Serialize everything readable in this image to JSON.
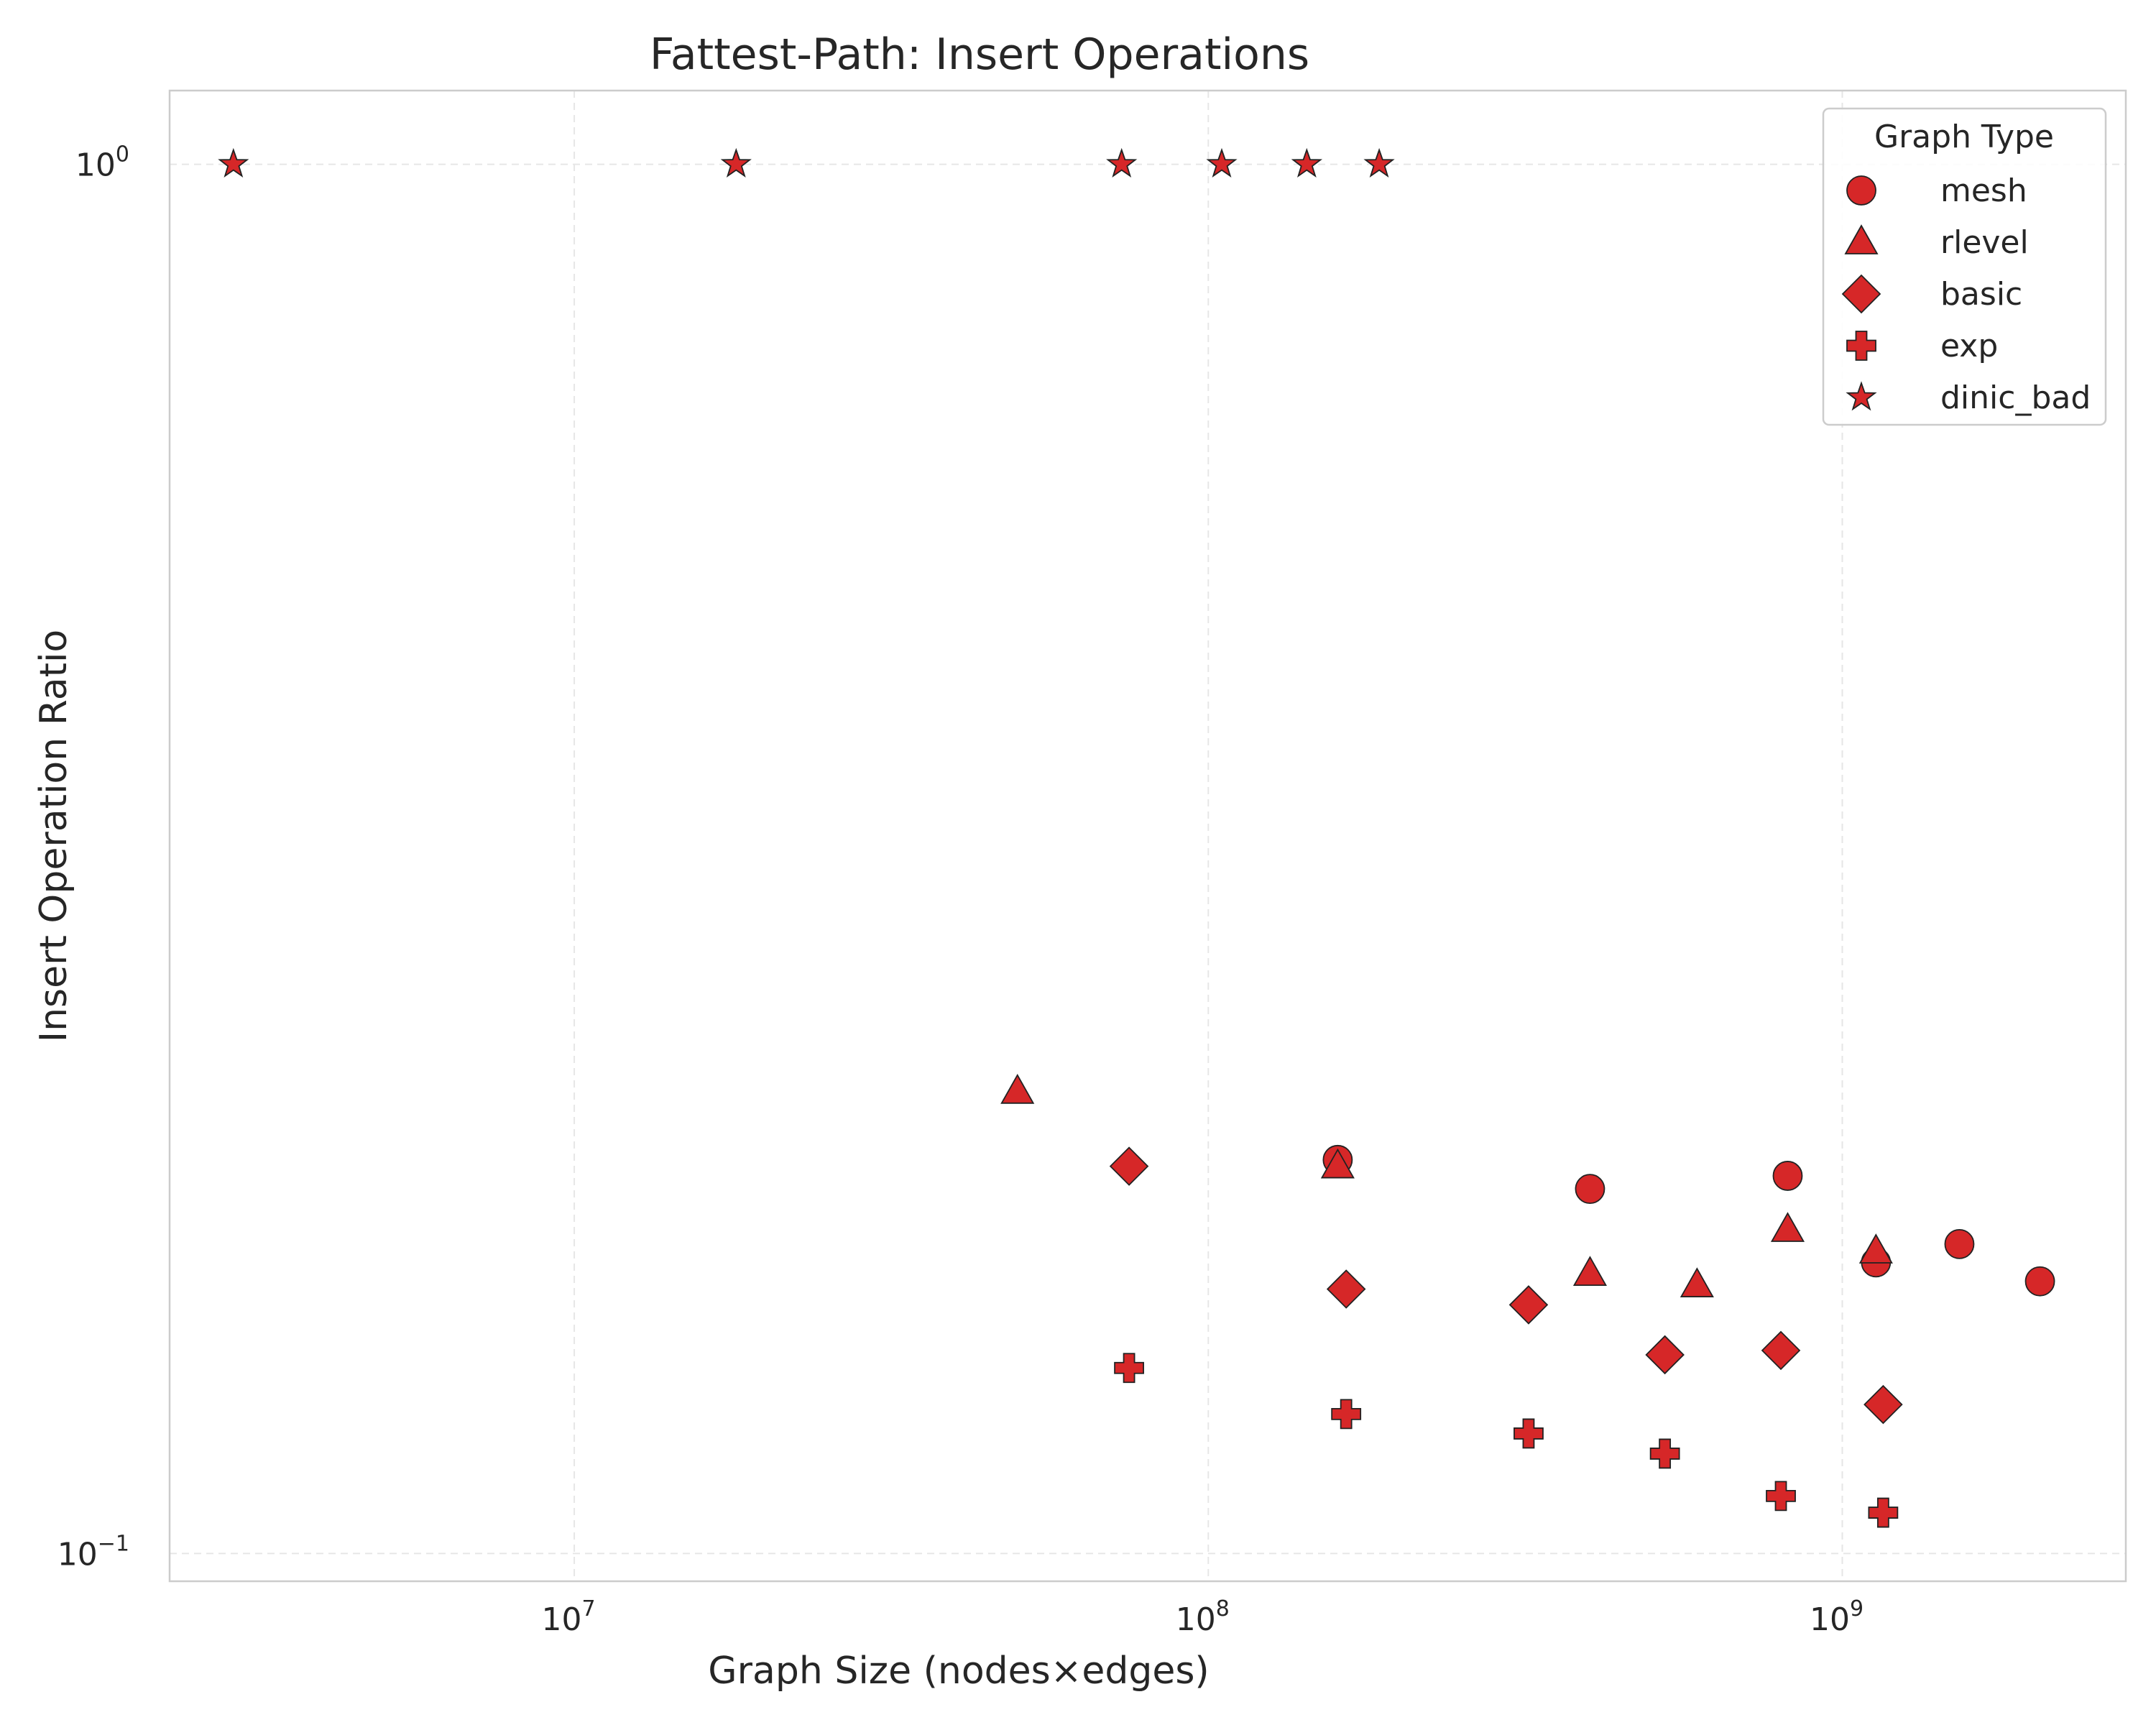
{
  "chart_data": {
    "type": "scatter",
    "title": "Fattest-Path: Insert Operations",
    "xlabel": "Graph Size (nodes×edges)",
    "ylabel": "Insert Operation Ratio",
    "x_scale": "log",
    "y_scale": "log",
    "xlim": [
      2300000,
      2800000000
    ],
    "ylim": [
      0.0955,
      1.13
    ],
    "x_ticks": [
      {
        "value": 10000000,
        "base": "10",
        "exp": "7"
      },
      {
        "value": 100000000,
        "base": "10",
        "exp": "8"
      },
      {
        "value": 1000000000,
        "base": "10",
        "exp": "9"
      }
    ],
    "y_ticks": [
      {
        "value": 1,
        "base": "10",
        "exp": "0"
      },
      {
        "value": 0.1,
        "base": "10",
        "exp": "−1"
      }
    ],
    "grid": true,
    "color": "#d62728",
    "edge_color": "#222222",
    "legend": {
      "title": "Graph Type",
      "placement": "top-right"
    },
    "series": [
      {
        "name": "mesh",
        "marker": "circle",
        "points": [
          [
            160000000,
            0.192
          ],
          [
            400000000,
            0.183
          ],
          [
            820000000,
            0.187
          ],
          [
            1130000000,
            0.162
          ],
          [
            1530000000,
            0.167
          ],
          [
            2050000000,
            0.157
          ]
        ]
      },
      {
        "name": "rlevel",
        "marker": "triangle",
        "points": [
          [
            50000000,
            0.215
          ],
          [
            160000000,
            0.19
          ],
          [
            400000000,
            0.159
          ],
          [
            590000000,
            0.156
          ],
          [
            820000000,
            0.171
          ],
          [
            1130000000,
            0.165
          ]
        ]
      },
      {
        "name": "basic",
        "marker": "diamond",
        "points": [
          [
            75000000,
            0.19
          ],
          [
            165000000,
            0.155
          ],
          [
            320000000,
            0.151
          ],
          [
            525000000,
            0.139
          ],
          [
            800000000,
            0.14
          ],
          [
            1160000000,
            0.128
          ]
        ]
      },
      {
        "name": "exp",
        "marker": "plus",
        "points": [
          [
            75000000,
            0.136
          ],
          [
            165000000,
            0.126
          ],
          [
            320000000,
            0.122
          ],
          [
            525000000,
            0.118
          ],
          [
            800000000,
            0.11
          ],
          [
            1160000000,
            0.107
          ]
        ]
      },
      {
        "name": "dinic_bad",
        "marker": "star",
        "points": [
          [
            2900000,
            1.0
          ],
          [
            18000000,
            1.0
          ],
          [
            73000000,
            1.0
          ],
          [
            105000000,
            1.0
          ],
          [
            143000000,
            1.0
          ],
          [
            186000000,
            1.0
          ]
        ]
      }
    ]
  }
}
